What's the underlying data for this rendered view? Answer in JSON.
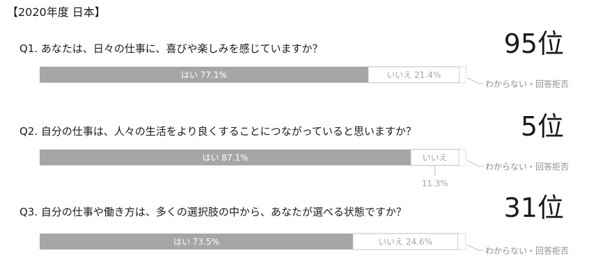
{
  "header": "【2020年度 日本】",
  "chart_data": {
    "type": "bar",
    "orientation": "horizontal-stacked-100",
    "segment_names": [
      "はい",
      "いいえ",
      "わからない・回答拒否"
    ],
    "colors": {
      "yes": "#a6a6a6",
      "no": "#ffffff",
      "unknown": "#ffffff",
      "edge": "#bfbfbf",
      "no_text": "#a6a6a6"
    },
    "unknown_label": "わからない・回答拒否",
    "questions": [
      {
        "text": "Q1. あなたは、日々の仕事に、喜びや楽しみを感じていますか？",
        "rank": "95位",
        "yes": 77.1,
        "no": 21.4,
        "yes_label": "はい 77.1%",
        "no_label": "いいえ 21.4%"
      },
      {
        "text": "Q2. 自分の仕事は、人々の生活をより良くすることにつながっていると思いますか？",
        "rank": "5位",
        "yes": 87.1,
        "no": 11.3,
        "yes_label": "はい 87.1%",
        "no_label": "いいえ",
        "no_value_label": "11.3%"
      },
      {
        "text": "Q3. 自分の仕事や働き方は、多くの選択肢の中から、あなたが選べる状態ですか？",
        "rank": "31位",
        "yes": 73.5,
        "no": 24.6,
        "yes_label": "はい 73.5%",
        "no_label": "いいえ 24.6%"
      }
    ]
  }
}
